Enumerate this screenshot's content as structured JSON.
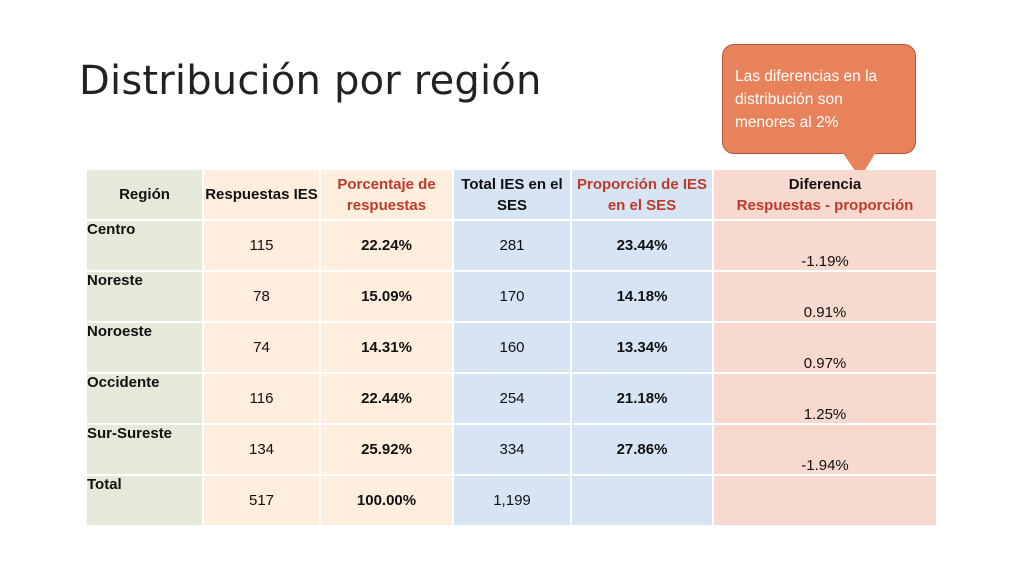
{
  "title": "Distribución por región",
  "callout": "Las diferencias en la distribución son menores al 2%",
  "table": {
    "headers": {
      "region": "Región",
      "respuestas": "Respuestas IES",
      "porcentaje": "Porcentaje de respuestas",
      "total_ies": "Total IES en el SES",
      "proporcion": "Proporción de IES en el SES",
      "diferencia_line1": "Diferencia",
      "diferencia_line2": "Respuestas - proporción"
    },
    "rows": [
      {
        "region": "Centro",
        "respuestas": "115",
        "porcentaje": "22.24%",
        "total_ies": "281",
        "proporcion": "23.44%",
        "diferencia": "-1.19%"
      },
      {
        "region": "Noreste",
        "respuestas": "78",
        "porcentaje": "15.09%",
        "total_ies": "170",
        "proporcion": "14.18%",
        "diferencia": "0.91%"
      },
      {
        "region": "Noroeste",
        "respuestas": "74",
        "porcentaje": "14.31%",
        "total_ies": "160",
        "proporcion": "13.34%",
        "diferencia": "0.97%"
      },
      {
        "region": "Occidente",
        "respuestas": "116",
        "porcentaje": "22.44%",
        "total_ies": "254",
        "proporcion": "21.18%",
        "diferencia": "1.25%"
      },
      {
        "region": "Sur-Sureste",
        "respuestas": "134",
        "porcentaje": "25.92%",
        "total_ies": "334",
        "proporcion": "27.86%",
        "diferencia": "-1.94%"
      },
      {
        "region": "Total",
        "respuestas": "517",
        "porcentaje": "100.00%",
        "total_ies": "1,199",
        "proporcion": "",
        "diferencia": ""
      }
    ]
  },
  "colors": {
    "callout_fill": "#e8825a",
    "header_red": "#c0392b",
    "col_region": "#e4e9da",
    "col_respuestas": "#fdeedd",
    "col_total": "#d6e4f3",
    "col_diferencia": "#f7d9cf"
  }
}
